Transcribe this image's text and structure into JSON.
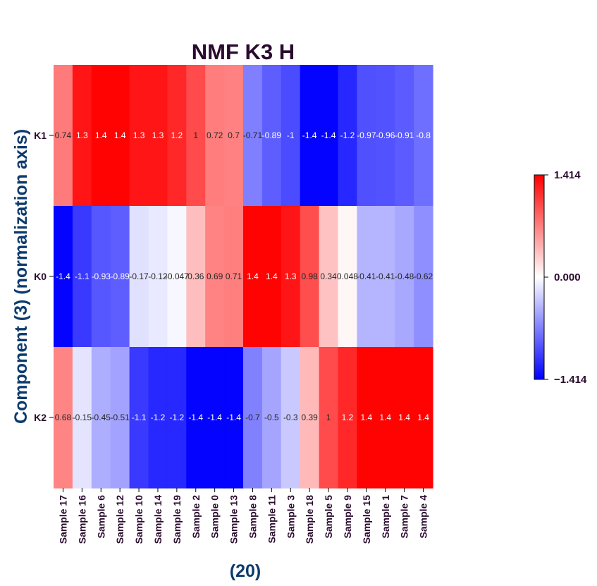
{
  "chart_data": {
    "type": "heatmap",
    "title": "NMF K3 H",
    "xlabel": "(20)",
    "ylabel": "Component (3) (normalization axis)",
    "rows": [
      "K1",
      "K0",
      "K2"
    ],
    "columns": [
      "Sample 17",
      "Sample 16",
      "Sample 6",
      "Sample 12",
      "Sample 10",
      "Sample 14",
      "Sample 19",
      "Sample 2",
      "Sample 0",
      "Sample 13",
      "Sample 8",
      "Sample 11",
      "Sample 3",
      "Sample 18",
      "Sample 5",
      "Sample 9",
      "Sample 15",
      "Sample 1",
      "Sample 7",
      "Sample 4"
    ],
    "values": [
      [
        0.74,
        1.3,
        1.4,
        1.4,
        1.3,
        1.3,
        1.2,
        1,
        0.72,
        0.7,
        -0.71,
        -0.89,
        -1,
        -1.4,
        -1.4,
        -1.2,
        -0.97,
        -0.96,
        -0.91,
        -0.8
      ],
      [
        -1.4,
        -1.1,
        -0.93,
        -0.89,
        -0.17,
        -0.12,
        -0.047,
        0.36,
        0.69,
        0.71,
        1.4,
        1.4,
        1.3,
        0.98,
        0.34,
        0.048,
        -0.41,
        -0.41,
        -0.48,
        -0.62
      ],
      [
        0.68,
        -0.15,
        -0.45,
        -0.51,
        -1.1,
        -1.2,
        -1.2,
        -1.4,
        -1.4,
        -1.4,
        -0.7,
        -0.5,
        -0.3,
        0.39,
        1,
        1.2,
        1.4,
        1.4,
        1.4,
        1.4
      ]
    ],
    "labels": [
      [
        "0.74",
        "1.3",
        "1.4",
        "1.4",
        "1.3",
        "1.3",
        "1.2",
        "1",
        "0.72",
        "0.7",
        "-0.71",
        "-0.89",
        "-1",
        "-1.4",
        "-1.4",
        "-1.2",
        "-0.97",
        "-0.96",
        "-0.91",
        "-0.8"
      ],
      [
        "-1.4",
        "-1.1",
        "-0.93",
        "-0.89",
        "-0.17",
        "-0.12",
        "-0.047",
        "0.36",
        "0.69",
        "0.71",
        "1.4",
        "1.4",
        "1.3",
        "0.98",
        "0.34",
        "0.048",
        "-0.41",
        "-0.41",
        "-0.48",
        "-0.62"
      ],
      [
        "0.68",
        "-0.15",
        "-0.45",
        "-0.51",
        "-1.1",
        "-1.2",
        "-1.2",
        "-1.4",
        "-1.4",
        "-1.4",
        "-0.7",
        "-0.5",
        "-0.3",
        "0.39",
        "1",
        "1.2",
        "1.4",
        "1.4",
        "1.4",
        "1.4"
      ]
    ],
    "vmin": -1.414,
    "vmax": 1.414,
    "colormap": "bwr",
    "colorbar": {
      "ticks": [
        "1.414",
        "0.000",
        "−1.414"
      ],
      "tick_values": [
        1.414,
        0.0,
        -1.414
      ],
      "placement": "right"
    },
    "grid": false
  },
  "colors": {
    "low": "#0000ff",
    "mid": "#ffffff",
    "high": "#ff0000",
    "title": "#2a0a2e",
    "axis_label": "#0d3b6e"
  }
}
